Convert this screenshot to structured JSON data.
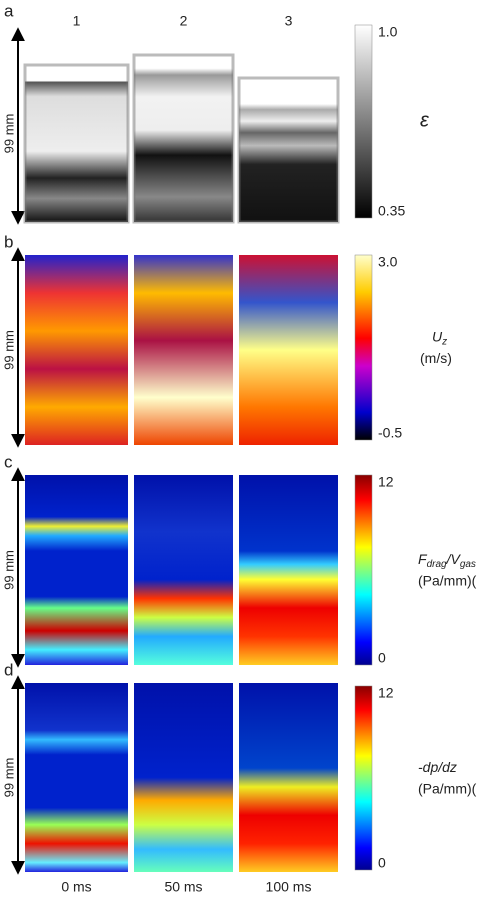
{
  "columns": [
    "1",
    "2",
    "3"
  ],
  "times": [
    "0 ms",
    "50 ms",
    "100 ms"
  ],
  "panels": [
    {
      "letter": "a",
      "axis_label": "99 mm",
      "colorbar_max": "1.0",
      "colorbar_min": "0.35",
      "quantity": "ε"
    },
    {
      "letter": "b",
      "axis_label": "99 mm",
      "colorbar_max": "3.0",
      "colorbar_min": "-0.5",
      "quantity": "U",
      "quantity_sub": "z",
      "unit": "(m/s)"
    },
    {
      "letter": "c",
      "axis_label": "99 mm",
      "colorbar_max": "12",
      "colorbar_min": "0",
      "quantity": "F",
      "quantity_sub": "drag",
      "quantity_2": "/V",
      "quantity_sub_2": "gas",
      "unit": "(Pa/mm)("
    },
    {
      "letter": "d",
      "axis_label": "99 mm",
      "colorbar_max": "12",
      "colorbar_min": "0",
      "quantity": "-dp/dz",
      "unit": "(Pa/mm)("
    }
  ]
}
